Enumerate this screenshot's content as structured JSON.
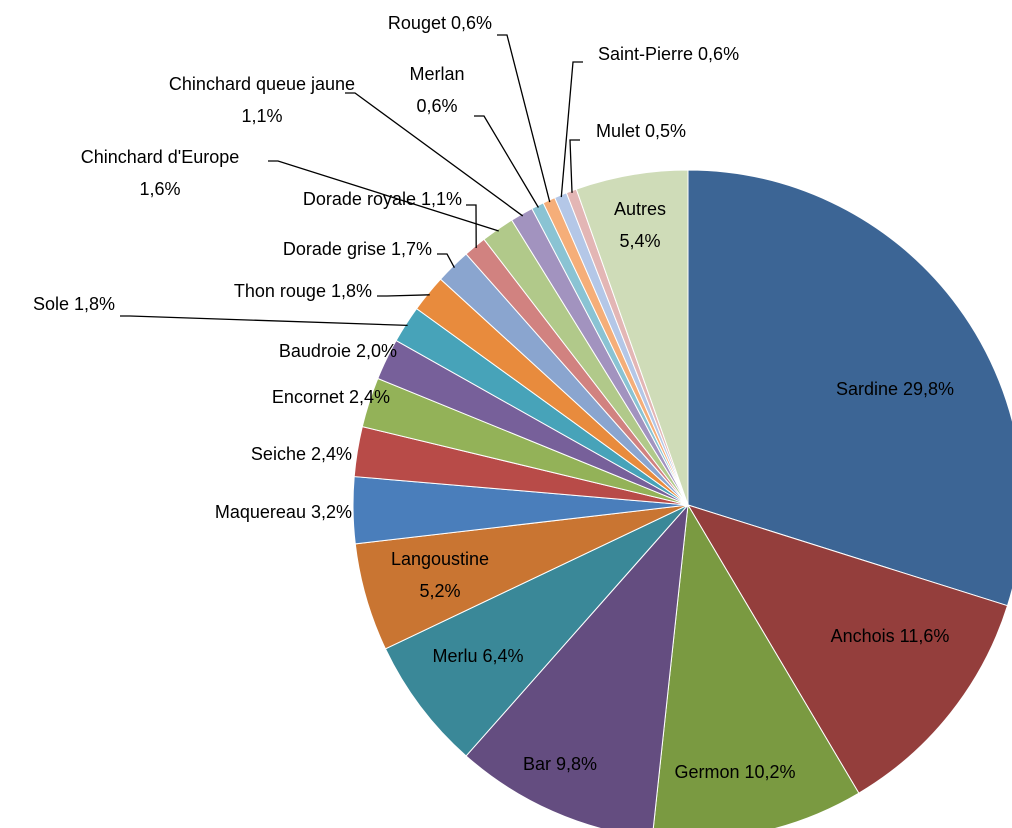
{
  "chart_data": {
    "type": "pie",
    "categories": [
      "Sardine",
      "Anchois",
      "Germon",
      "Bar",
      "Merlu",
      "Langoustine",
      "Maquereau",
      "Seiche",
      "Encornet",
      "Baudroie",
      "Sole",
      "Thon rouge",
      "Dorade grise",
      "Dorade royale",
      "Chinchard d'Europe",
      "Chinchard queue jaune",
      "Merlan",
      "Rouget",
      "Saint-Pierre",
      "Mulet",
      "Autres"
    ],
    "values": [
      29.8,
      11.6,
      10.2,
      9.8,
      6.4,
      5.2,
      3.2,
      2.4,
      2.4,
      2.0,
      1.8,
      1.8,
      1.7,
      1.1,
      1.6,
      1.1,
      0.6,
      0.6,
      0.6,
      0.5,
      5.4
    ],
    "value_labels": [
      "29,8%",
      "11,6%",
      "10,2%",
      "9,8%",
      "6,4%",
      "5,2%",
      "3,2%",
      "2,4%",
      "2,4%",
      "2,0%",
      "1,8%",
      "1,8%",
      "1,7%",
      "1,1%",
      "1,6%",
      "1,1%",
      "0,6%",
      "0,6%",
      "0,6%",
      "0,5%",
      "5,4%"
    ],
    "colors": [
      "#3c6595",
      "#943e3c",
      "#7a9a41",
      "#644d80",
      "#3a8898",
      "#c97532",
      "#4a7ebb",
      "#b84b48",
      "#93b258",
      "#77609a",
      "#47a3b9",
      "#e88b3d",
      "#8aa5cf",
      "#d18280",
      "#b1c98a",
      "#a293bf",
      "#8ac3d3",
      "#f5ae79",
      "#b4c7e7",
      "#e3b6b5",
      "#cfdcb8"
    ]
  }
}
